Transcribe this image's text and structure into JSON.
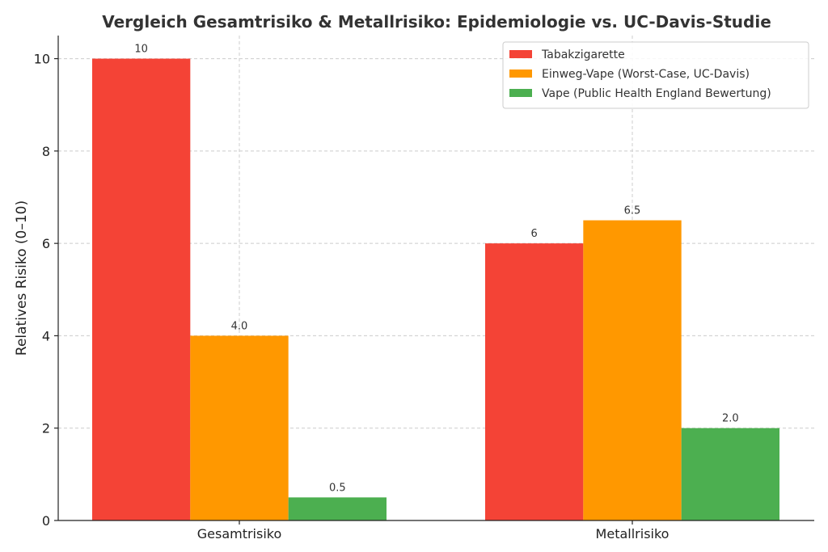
{
  "chart_data": {
    "type": "bar",
    "title": "Vergleich Gesamtrisiko & Metallrisiko: Epidemiologie vs. UC-Davis-Studie",
    "xlabel": "",
    "ylabel": "Relatives Risiko (0–10)",
    "categories": [
      "Gesamtrisiko",
      "Metallrisiko"
    ],
    "ylim": [
      0,
      10.5
    ],
    "yticks": [
      0,
      2,
      4,
      6,
      8,
      10
    ],
    "grid": true,
    "legend_position": "top-right",
    "series": [
      {
        "name": "Tabakzigarette",
        "color": "#f44336",
        "values": [
          10,
          6
        ],
        "labels": [
          "10",
          "6"
        ]
      },
      {
        "name": "Einweg-Vape (Worst-Case, UC-Davis)",
        "color": "#ff9800",
        "values": [
          4.0,
          6.5
        ],
        "labels": [
          "4.0",
          "6.5"
        ]
      },
      {
        "name": "Vape (Public Health England Bewertung)",
        "color": "#4caf50",
        "values": [
          0.5,
          2.0
        ],
        "labels": [
          "0.5",
          "2.0"
        ]
      }
    ]
  }
}
